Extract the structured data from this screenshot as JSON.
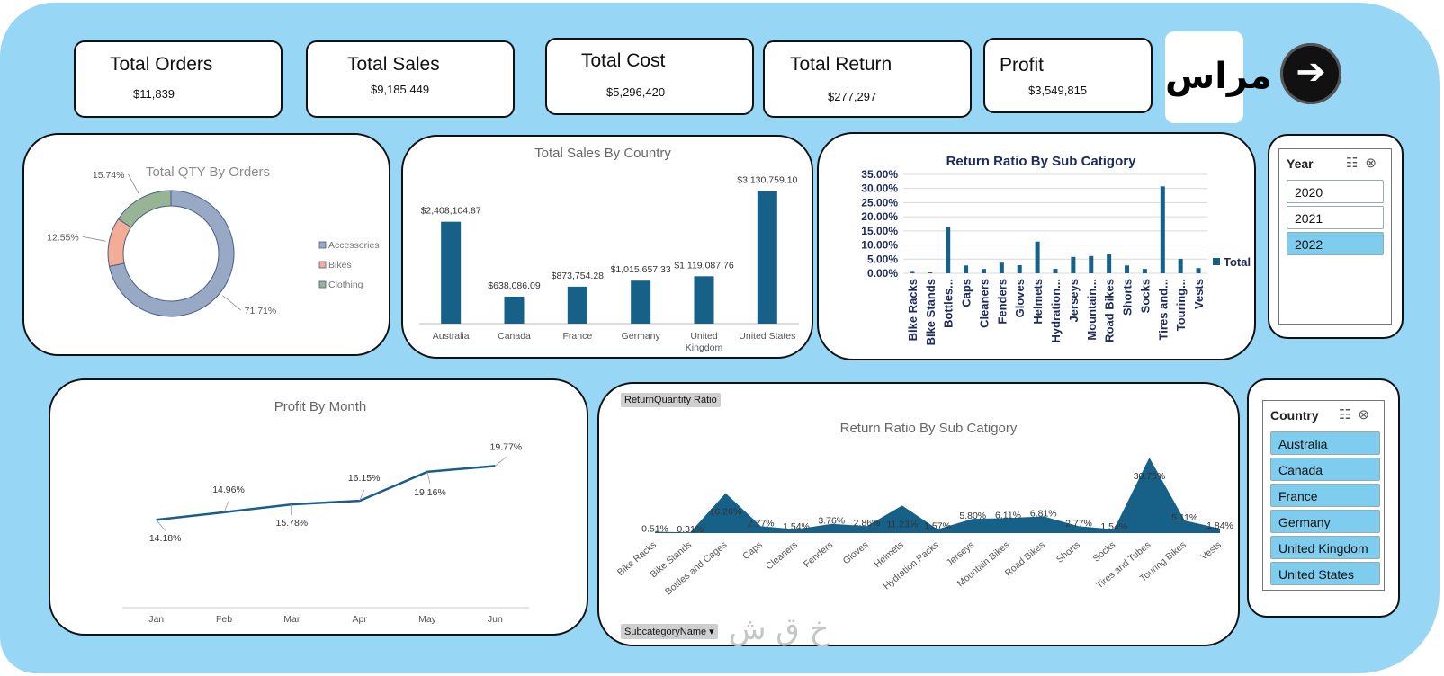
{
  "kpis": [
    {
      "title": "Total Orders",
      "value": "$11,839"
    },
    {
      "title": "Total Sales",
      "value": "$9,185,449"
    },
    {
      "title": "Total Cost",
      "value": "$5,296,420"
    },
    {
      "title": "Total Return",
      "value": "$277,297"
    },
    {
      "title": "Profit",
      "value": "$3,549,815"
    }
  ],
  "logo_text": "مراس",
  "nav_icon": "arrow-right-icon",
  "colors": {
    "panel": "#98d6f5",
    "bar": "#176188",
    "line": "#1c5c8a"
  },
  "year_slicer": {
    "title": "Year",
    "items": [
      "2020",
      "2021",
      "2022"
    ],
    "selected": "2022"
  },
  "country_slicer": {
    "title": "Country",
    "items": [
      "Australia",
      "Canada",
      "France",
      "Germany",
      "United Kingdom",
      "United States"
    ]
  },
  "pivot_buttons": {
    "return_qty": "ReturnQuantity Ratio",
    "subcategory": "SubcategoryName ▾"
  },
  "watermark": "خ ق ش",
  "chart_data": [
    {
      "id": "qty_by_orders",
      "type": "pie",
      "title": "Total QTY By Orders",
      "categories": [
        "Accessories",
        "Bikes",
        "Clothing"
      ],
      "values": [
        71.71,
        12.55,
        15.74
      ],
      "labels": [
        "71.71%",
        "12.55%",
        "15.74%"
      ],
      "colors": [
        "#98a9c5",
        "#f3ac95",
        "#97b594"
      ],
      "legend": "right"
    },
    {
      "id": "sales_by_country",
      "type": "bar",
      "title": "Total Sales By Country",
      "categories": [
        "Australia",
        "Canada",
        "France",
        "Germany",
        "United Kingdom",
        "United States"
      ],
      "values": [
        2408104.87,
        638086.09,
        873754.28,
        1015657.33,
        1119087.76,
        3130759.1
      ],
      "labels": [
        "$2,408,104.87",
        "$638,086.09",
        "$873,754.28",
        "$1,015,657.33",
        "$1,119,087.76",
        "$3,130,759.10"
      ],
      "ylim": [
        0,
        3400000
      ]
    },
    {
      "id": "return_ratio_bar",
      "type": "bar",
      "title": "Return Ratio By Sub Catigory",
      "categories": [
        "Bike Racks",
        "Bike Stands",
        "Bottles...",
        "Caps",
        "Cleaners",
        "Fenders",
        "Gloves",
        "Helmets",
        "Hydration...",
        "Jerseys",
        "Mountain...",
        "Road Bikes",
        "Shorts",
        "Socks",
        "Tires and...",
        "Touring...",
        "Vests"
      ],
      "values": [
        0.51,
        0.31,
        16.26,
        2.77,
        1.54,
        3.76,
        2.86,
        11.23,
        1.57,
        5.8,
        6.11,
        6.81,
        2.77,
        1.54,
        30.76,
        5.11,
        1.84
      ],
      "yticks": [
        "0.00%",
        "5.00%",
        "10.00%",
        "15.00%",
        "20.00%",
        "25.00%",
        "30.00%",
        "35.00%"
      ],
      "ylim": [
        0,
        35
      ],
      "legend": [
        "Total"
      ]
    },
    {
      "id": "profit_by_month",
      "type": "line",
      "title": "Profit By Month",
      "categories": [
        "Jan",
        "Feb",
        "Mar",
        "Apr",
        "May",
        "Jun"
      ],
      "values": [
        14.18,
        14.96,
        15.78,
        16.15,
        19.16,
        19.77
      ],
      "labels": [
        "14.18%",
        "14.96%",
        "15.78%",
        "16.15%",
        "19.16%",
        "19.77%"
      ]
    },
    {
      "id": "return_ratio_area",
      "type": "area",
      "title": "Return Ratio By Sub Catigory",
      "categories": [
        "Bike Racks",
        "Bike Stands",
        "Bottles and Cages",
        "Caps",
        "Cleaners",
        "Fenders",
        "Gloves",
        "Helmets",
        "Hydration Packs",
        "Jerseys",
        "Mountain Bikes",
        "Road Bikes",
        "Shorts",
        "Socks",
        "Tires and Tubes",
        "Touring Bikes",
        "Vests"
      ],
      "values": [
        0.51,
        0.31,
        16.26,
        2.77,
        1.54,
        3.76,
        2.86,
        11.23,
        1.57,
        5.8,
        6.11,
        6.81,
        2.77,
        1.54,
        30.76,
        5.11,
        1.84
      ],
      "labels": [
        "0.51%",
        "0.31%",
        "16.26%",
        "2.77%",
        "1.54%",
        "3.76%",
        "2.86%",
        "11.23%",
        "1.57%",
        "5.80%",
        "6.11%",
        "6.81%",
        "2.77%",
        "1.54%",
        "30.76%",
        "5.11%",
        "1.84%"
      ]
    }
  ]
}
